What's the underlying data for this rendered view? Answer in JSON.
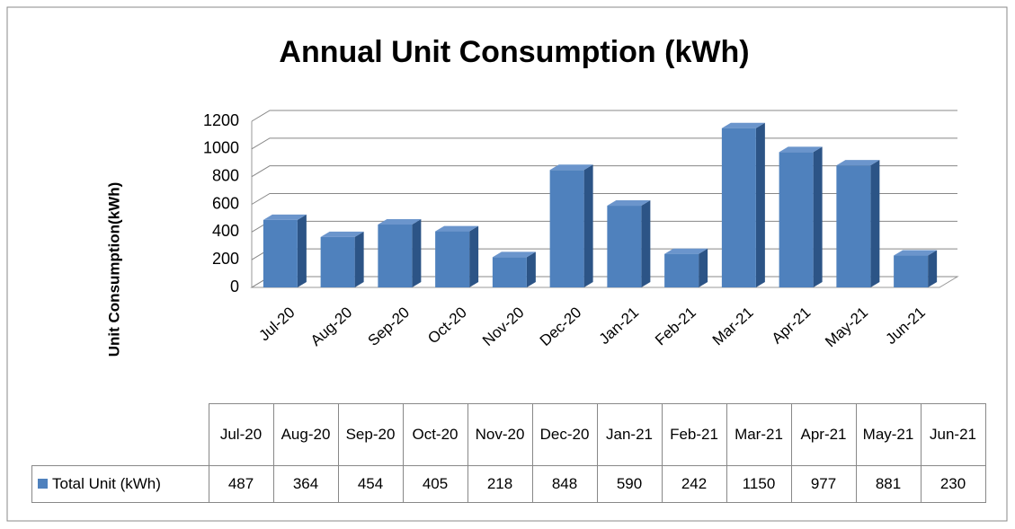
{
  "chart_data": {
    "type": "bar",
    "title": "Annual Unit Consumption  (kWh)",
    "y_label": "Unit Consumption(kWh)",
    "categories": [
      "Jul-20",
      "Aug-20",
      "Sep-20",
      "Oct-20",
      "Nov-20",
      "Dec-20",
      "Jan-21",
      "Feb-21",
      "Mar-21",
      "Apr-21",
      "May-21",
      "Jun-21"
    ],
    "series": [
      {
        "name": "Total Unit (kWh)",
        "color": "#4f81bd",
        "values": [
          487,
          364,
          454,
          405,
          218,
          848,
          590,
          242,
          1150,
          977,
          881,
          230
        ]
      }
    ],
    "ylim": [
      0,
      1200
    ],
    "yticks": [
      0,
      200,
      400,
      600,
      800,
      1000,
      1200
    ],
    "grid": true
  }
}
